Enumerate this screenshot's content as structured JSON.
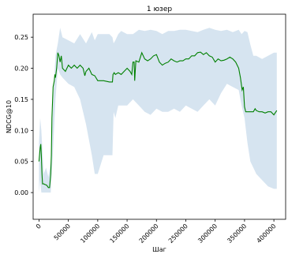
{
  "chart_data": {
    "type": "line",
    "title": "1 юзер",
    "xlabel": "Шаг",
    "ylabel": "NDCG@10",
    "xlim": [
      -10000,
      420000
    ],
    "ylim": [
      -0.043,
      0.287
    ],
    "grid": false,
    "x_ticks": [
      0,
      50000,
      100000,
      150000,
      200000,
      250000,
      300000,
      350000,
      400000
    ],
    "x_tick_labels": [
      "0",
      "50000",
      "100000",
      "150000",
      "200000",
      "250000",
      "300000",
      "350000",
      "400000"
    ],
    "y_ticks": [
      0.0,
      0.05,
      0.1,
      0.15,
      0.2,
      0.25
    ],
    "y_tick_labels": [
      "0.00",
      "0.05",
      "0.10",
      "0.15",
      "0.20",
      "0.25"
    ],
    "colors": {
      "line": "#008000",
      "band": "#d6e4f0",
      "axes": "#000000"
    },
    "series": [
      {
        "kind": "mean",
        "x": [
          0,
          2000,
          3000,
          4000,
          5000,
          6000,
          8000,
          10000,
          13000,
          16000,
          18000,
          20000,
          21000,
          22000,
          24000,
          26000,
          27000,
          28000,
          30000,
          32000,
          34000,
          36000,
          38000,
          40000,
          45000,
          50000,
          55000,
          60000,
          65000,
          70000,
          75000,
          78000,
          80000,
          85000,
          90000,
          95000,
          100000,
          110000,
          120000,
          125000,
          126000,
          128000,
          130000,
          135000,
          140000,
          145000,
          150000,
          155000,
          158000,
          160000,
          162000,
          163000,
          165000,
          170000,
          175000,
          180000,
          185000,
          190000,
          195000,
          200000,
          205000,
          210000,
          215000,
          220000,
          225000,
          230000,
          235000,
          240000,
          245000,
          250000,
          255000,
          260000,
          265000,
          270000,
          275000,
          280000,
          285000,
          290000,
          295000,
          300000,
          305000,
          310000,
          315000,
          320000,
          325000,
          330000,
          335000,
          340000,
          343000,
          346000,
          348000,
          350000,
          352000,
          355000,
          357000,
          360000,
          363000,
          365000,
          368000,
          370000,
          375000,
          380000,
          385000,
          390000,
          395000,
          400000,
          405000
        ],
        "y": [
          0.05,
          0.072,
          0.078,
          0.06,
          0.03,
          0.014,
          0.014,
          0.013,
          0.012,
          0.008,
          0.008,
          0.03,
          0.06,
          0.12,
          0.17,
          0.18,
          0.19,
          0.185,
          0.2,
          0.225,
          0.22,
          0.21,
          0.22,
          0.2,
          0.195,
          0.205,
          0.2,
          0.205,
          0.2,
          0.205,
          0.2,
          0.188,
          0.195,
          0.2,
          0.19,
          0.188,
          0.18,
          0.18,
          0.178,
          0.178,
          0.19,
          0.193,
          0.19,
          0.193,
          0.19,
          0.195,
          0.2,
          0.195,
          0.19,
          0.21,
          0.21,
          0.18,
          0.212,
          0.21,
          0.225,
          0.215,
          0.212,
          0.215,
          0.22,
          0.222,
          0.21,
          0.205,
          0.208,
          0.21,
          0.215,
          0.212,
          0.21,
          0.212,
          0.212,
          0.215,
          0.215,
          0.22,
          0.22,
          0.225,
          0.226,
          0.222,
          0.225,
          0.22,
          0.218,
          0.21,
          0.215,
          0.212,
          0.213,
          0.215,
          0.218,
          0.215,
          0.21,
          0.2,
          0.185,
          0.165,
          0.17,
          0.138,
          0.13,
          0.13,
          0.13,
          0.13,
          0.13,
          0.13,
          0.135,
          0.132,
          0.13,
          0.13,
          0.128,
          0.13,
          0.13,
          0.125,
          0.132
        ]
      },
      {
        "kind": "band",
        "x": [
          0,
          2000,
          4000,
          8000,
          12000,
          16000,
          20000,
          24000,
          28000,
          32000,
          36000,
          40000,
          50000,
          60000,
          70000,
          80000,
          90000,
          95000,
          100000,
          110000,
          120000,
          125000,
          127000,
          130000,
          135000,
          140000,
          150000,
          160000,
          170000,
          180000,
          190000,
          200000,
          210000,
          220000,
          230000,
          240000,
          250000,
          260000,
          270000,
          280000,
          290000,
          300000,
          310000,
          320000,
          330000,
          340000,
          345000,
          350000,
          355000,
          360000,
          365000,
          370000,
          380000,
          390000,
          400000,
          405000
        ],
        "upper": [
          0.08,
          0.12,
          0.1,
          0.03,
          0.04,
          0.025,
          0.05,
          0.15,
          0.22,
          0.24,
          0.265,
          0.25,
          0.245,
          0.24,
          0.255,
          0.24,
          0.258,
          0.245,
          0.255,
          0.255,
          0.255,
          0.25,
          0.24,
          0.245,
          0.255,
          0.26,
          0.255,
          0.255,
          0.262,
          0.26,
          0.262,
          0.26,
          0.255,
          0.26,
          0.26,
          0.262,
          0.262,
          0.26,
          0.258,
          0.262,
          0.265,
          0.262,
          0.26,
          0.262,
          0.258,
          0.262,
          0.255,
          0.26,
          0.258,
          0.238,
          0.22,
          0.22,
          0.215,
          0.22,
          0.225,
          0.225
        ],
        "lower": [
          0.0,
          0.02,
          0.0,
          0.0,
          0.0,
          0.0,
          0.0,
          0.07,
          0.15,
          0.2,
          0.19,
          0.185,
          0.175,
          0.17,
          0.15,
          0.11,
          0.06,
          0.03,
          0.03,
          0.06,
          0.06,
          0.06,
          0.13,
          0.12,
          0.14,
          0.14,
          0.14,
          0.15,
          0.14,
          0.13,
          0.125,
          0.135,
          0.13,
          0.13,
          0.135,
          0.13,
          0.14,
          0.135,
          0.13,
          0.14,
          0.15,
          0.14,
          0.16,
          0.175,
          0.17,
          0.165,
          0.14,
          0.12,
          0.08,
          0.05,
          0.04,
          0.03,
          0.02,
          0.01,
          0.006,
          0.006
        ]
      }
    ]
  }
}
